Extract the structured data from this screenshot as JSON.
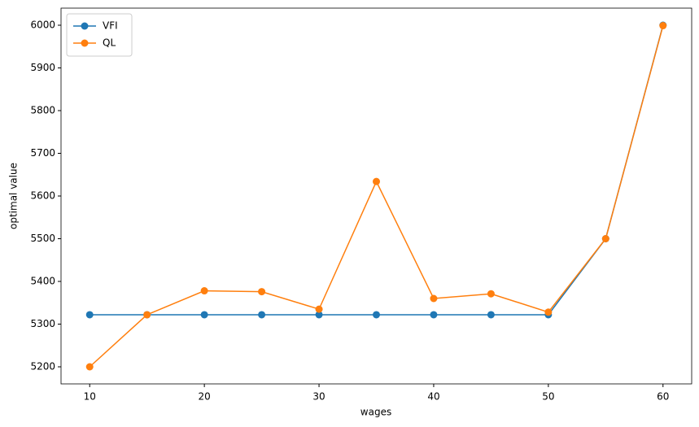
{
  "chart_data": {
    "type": "line",
    "x_label": "wages",
    "y_label": "optimal value",
    "x": [
      10,
      15,
      20,
      25,
      30,
      35,
      40,
      45,
      50,
      55,
      60
    ],
    "series": [
      {
        "name": "VFI",
        "color": "#1f77b4",
        "values": [
          5322,
          5322,
          5322,
          5322,
          5322,
          5322,
          5322,
          5322,
          5322,
          5500,
          6000
        ]
      },
      {
        "name": "QL",
        "color": "#ff7f0e",
        "values": [
          5200,
          5322,
          5378,
          5376,
          5335,
          5634,
          5360,
          5371,
          5328,
          5500,
          5999
        ]
      }
    ],
    "xlim": [
      7.5,
      62.5
    ],
    "ylim": [
      5160,
      6040
    ],
    "xticks": [
      10,
      20,
      30,
      40,
      50,
      60
    ],
    "yticks": [
      5200,
      5300,
      5400,
      5500,
      5600,
      5700,
      5800,
      5900,
      6000
    ],
    "legend": "upper-left",
    "grid": false
  }
}
